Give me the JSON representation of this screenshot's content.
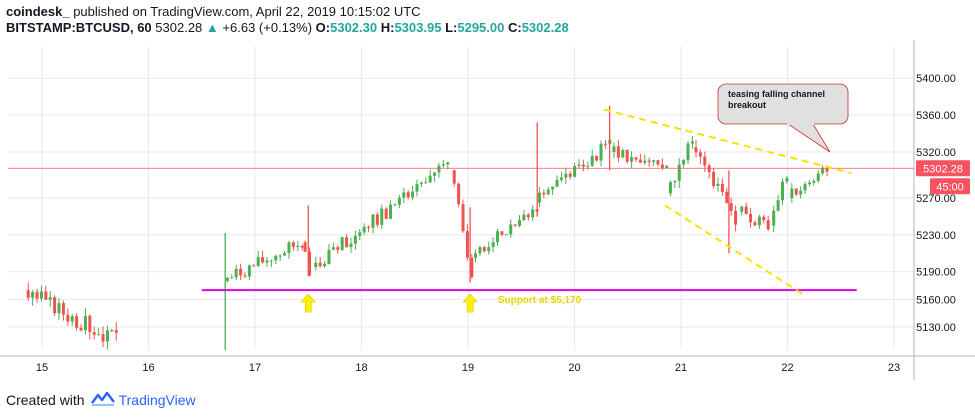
{
  "header": {
    "publisher": "coindesk_",
    "published": " published on TradingView.com, April 22, 2019 10:15:02 UTC",
    "symbol": "BITSTAMP:BTCUSD, 60",
    "last": "5302.28",
    "change": "+6.63 (+0.13%)",
    "o_label": "O:",
    "o_value": "5302.30",
    "h_label": "H:",
    "h_value": "5303.95",
    "l_label": "L:",
    "l_value": "5295.00",
    "c_label": "C:",
    "c_value": "5302.28"
  },
  "footer": {
    "created_with": "Created with",
    "brand": "TradingView"
  },
  "colors": {
    "up": "#26a69a",
    "up_candle": "#4caf50",
    "down_candle": "#ef5350",
    "support": "#e000e0",
    "trend": "#f5e400",
    "arrow": "#ffee00",
    "price_line": "#f7525f",
    "grid": "#e6e9ef"
  },
  "chart_data": {
    "type": "candlestick",
    "xlabels": [
      "15",
      "16",
      "17",
      "18",
      "19",
      "20",
      "21",
      "22",
      "23"
    ],
    "ylabels": [
      "5400.00",
      "5360.00",
      "5320.00",
      "5270.00",
      "5230.00",
      "5190.00",
      "5160.00",
      "5130.00"
    ],
    "ylim": [
      5105,
      5435
    ],
    "last_price_label": "5302.28",
    "countdown_label": "45:00",
    "support": {
      "value": 5170,
      "label": "Support at $5,170",
      "x_range": [
        16.5,
        22.65
      ]
    },
    "callout": "teasing falling channel breakout",
    "trendlines": [
      {
        "from": [
          20.28,
          5366
        ],
        "to": [
          22.6,
          5297
        ]
      },
      {
        "from": [
          20.85,
          5262
        ],
        "to": [
          22.15,
          5165
        ]
      }
    ],
    "support_arrows": [
      17.5,
      19.02
    ],
    "segments": [
      {
        "start": 14.85,
        "end": 15.7,
        "from": 5170,
        "to": 5115,
        "vol": 10,
        "seed": 3
      },
      {
        "start": 16.72,
        "end": 17.45,
        "from": 5180,
        "to": 5222,
        "vol": 8,
        "seed": 7
      },
      {
        "start": 17.45,
        "end": 17.55,
        "from": 5222,
        "to": 5190,
        "vol": 7,
        "seed": 11
      },
      {
        "start": 17.55,
        "end": 18.85,
        "from": 5195,
        "to": 5305,
        "vol": 8,
        "seed": 13
      },
      {
        "start": 18.85,
        "end": 19.05,
        "from": 5300,
        "to": 5190,
        "vol": 9,
        "seed": 17
      },
      {
        "start": 19.05,
        "end": 19.65,
        "from": 5205,
        "to": 5260,
        "vol": 7,
        "seed": 19
      },
      {
        "start": 19.65,
        "end": 20.35,
        "from": 5265,
        "to": 5330,
        "vol": 8,
        "seed": 23
      },
      {
        "start": 20.35,
        "end": 20.88,
        "from": 5320,
        "to": 5305,
        "vol": 8,
        "seed": 29
      },
      {
        "start": 20.88,
        "end": 21.12,
        "from": 5275,
        "to": 5335,
        "vol": 9,
        "seed": 31
      },
      {
        "start": 21.12,
        "end": 21.55,
        "from": 5325,
        "to": 5245,
        "vol": 9,
        "seed": 37
      },
      {
        "start": 21.55,
        "end": 21.85,
        "from": 5255,
        "to": 5240,
        "vol": 8,
        "seed": 41
      },
      {
        "start": 21.85,
        "end": 22.02,
        "from": 5240,
        "to": 5295,
        "vol": 8,
        "seed": 43
      },
      {
        "start": 22.02,
        "end": 22.38,
        "from": 5270,
        "to": 5300,
        "vol": 7,
        "seed": 47
      }
    ]
  }
}
